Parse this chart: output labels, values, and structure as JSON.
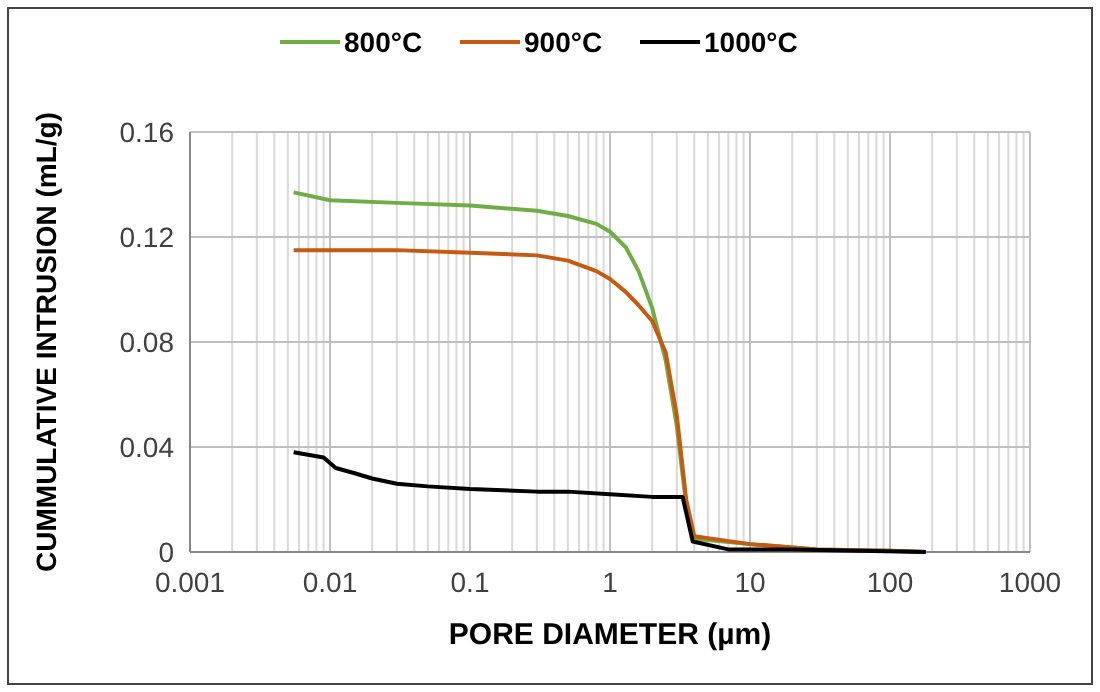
{
  "chart_data": {
    "type": "line",
    "xlabel": "PORE DIAMETER (µm)",
    "ylabel": "CUMMULATIVE INTRUSION (mL/g)",
    "log": "x",
    "xlim": [
      0.001,
      1000
    ],
    "xticks": [
      0.001,
      0.01,
      0.1,
      1,
      10,
      100,
      1000
    ],
    "ylim": [
      0,
      0.16
    ],
    "yticks": [
      0,
      0.04,
      0.08,
      0.12,
      0.16
    ],
    "grid": true,
    "legend": "top",
    "marker": "none",
    "line_style": "solid",
    "series": [
      {
        "name": "800°C",
        "color": "#70ad47",
        "x": [
          0.0055,
          0.01,
          0.03,
          0.1,
          0.3,
          0.5,
          0.8,
          1,
          1.3,
          1.6,
          2,
          2.5,
          3,
          3.5,
          4,
          10,
          30,
          100,
          180
        ],
        "values": [
          0.137,
          0.134,
          0.133,
          0.132,
          0.13,
          0.128,
          0.125,
          0.122,
          0.116,
          0.107,
          0.093,
          0.073,
          0.048,
          0.018,
          0.005,
          0.003,
          0.001,
          0.0005,
          0
        ]
      },
      {
        "name": "900°C",
        "color": "#c55a11",
        "x": [
          0.0055,
          0.01,
          0.03,
          0.1,
          0.3,
          0.5,
          0.8,
          1,
          1.3,
          1.6,
          2,
          2.5,
          3,
          3.5,
          4,
          10,
          30,
          100,
          180
        ],
        "values": [
          0.115,
          0.115,
          0.115,
          0.114,
          0.113,
          0.111,
          0.107,
          0.104,
          0.099,
          0.094,
          0.088,
          0.076,
          0.052,
          0.02,
          0.006,
          0.003,
          0.001,
          0.0005,
          0
        ]
      },
      {
        "name": "1000°C",
        "color": "#000000",
        "x": [
          0.0055,
          0.009,
          0.011,
          0.015,
          0.02,
          0.03,
          0.05,
          0.1,
          0.3,
          0.5,
          1,
          2,
          3.3,
          3.9,
          7,
          20,
          180
        ],
        "values": [
          0.038,
          0.036,
          0.032,
          0.03,
          0.028,
          0.026,
          0.025,
          0.024,
          0.023,
          0.023,
          0.022,
          0.021,
          0.021,
          0.004,
          0.001,
          0.001,
          0
        ]
      }
    ]
  }
}
